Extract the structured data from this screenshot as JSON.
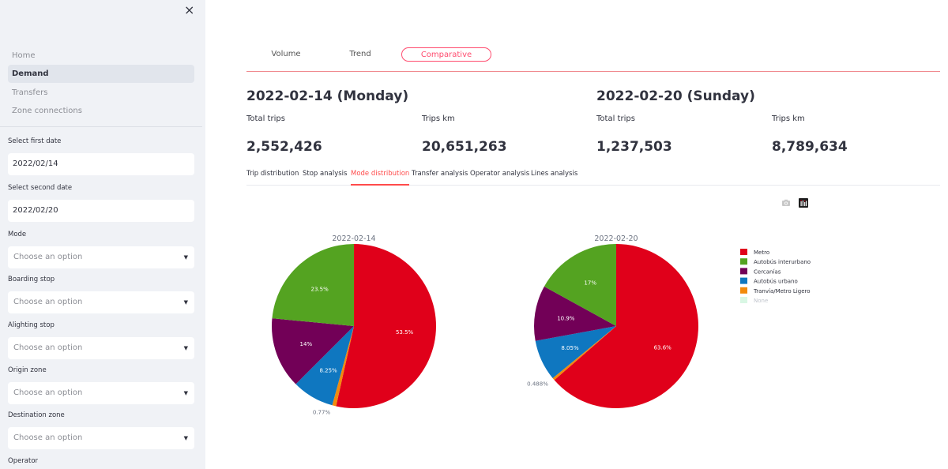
{
  "sidebar": {
    "close_label": "×",
    "nav": [
      {
        "label": "Home",
        "active": false
      },
      {
        "label": "Demand",
        "active": true
      },
      {
        "label": "Transfers",
        "active": false
      },
      {
        "label": "Zone connections",
        "active": false
      }
    ],
    "fields": [
      {
        "label": "Select first date",
        "value": "2022/02/14",
        "type": "date"
      },
      {
        "label": "Select second date",
        "value": "2022/02/20",
        "type": "date"
      },
      {
        "label": "Mode",
        "placeholder": "Choose an option",
        "type": "select"
      },
      {
        "label": "Boarding stop",
        "placeholder": "Choose an option",
        "type": "select"
      },
      {
        "label": "Alighting stop",
        "placeholder": "Choose an option",
        "type": "select"
      },
      {
        "label": "Origin zone",
        "placeholder": "Choose an option",
        "type": "select"
      },
      {
        "label": "Destination zone",
        "placeholder": "Choose an option",
        "type": "select"
      },
      {
        "label": "Operator",
        "type": "select"
      }
    ]
  },
  "main": {
    "top_tabs": [
      {
        "label": "Volume",
        "active": false
      },
      {
        "label": "Trend",
        "active": false
      },
      {
        "label": "Comparative",
        "active": true
      }
    ],
    "dates": [
      {
        "title": "2022-02-14 (Monday)",
        "metrics": [
          {
            "label": "Total trips",
            "value": "2,552,426"
          },
          {
            "label": "Trips km",
            "value": "20,651,263"
          }
        ]
      },
      {
        "title": "2022-02-20 (Sunday)",
        "metrics": [
          {
            "label": "Total trips",
            "value": "1,237,503"
          },
          {
            "label": "Trips km",
            "value": "8,789,634"
          }
        ]
      }
    ],
    "sub_tabs": [
      {
        "label": "Trip distribution",
        "active": false
      },
      {
        "label": "Stop analysis",
        "active": false
      },
      {
        "label": "Mode distribution",
        "active": true
      },
      {
        "label": "Transfer analysis",
        "active": false
      },
      {
        "label": "Operator analysis",
        "active": false
      },
      {
        "label": "Lines analysis",
        "active": false
      }
    ],
    "toolbar": {
      "camera_icon": "camera-icon",
      "plotly_icon": "plotly-logo-icon"
    }
  },
  "chart_data": [
    {
      "type": "pie",
      "title": "2022-02-14",
      "categories": [
        "Metro",
        "Tranvía/Metro Ligero",
        "Autobús urbano",
        "Cercanías",
        "Autobús interurbano"
      ],
      "values": [
        53.5,
        0.77,
        8.25,
        14,
        23.5
      ],
      "labels": [
        "53.5%",
        "0.77%",
        "8.25%",
        "14%",
        "23.5%"
      ],
      "colors": [
        "#e0001a",
        "#f28a0c",
        "#0f77c0",
        "#720057",
        "#54a321"
      ]
    },
    {
      "type": "pie",
      "title": "2022-02-20",
      "categories": [
        "Metro",
        "Tranvía/Metro Ligero",
        "Autobús urbano",
        "Cercanías",
        "Autobús interurbano"
      ],
      "values": [
        63.6,
        0.488,
        8.05,
        10.9,
        17
      ],
      "labels": [
        "63.6%",
        "0.488%",
        "8.05%",
        "10.9%",
        "17%"
      ],
      "colors": [
        "#e0001a",
        "#f28a0c",
        "#0f77c0",
        "#720057",
        "#54a321"
      ]
    }
  ],
  "legend": {
    "placement": "right",
    "items": [
      {
        "label": "Metro",
        "color": "#e0001a",
        "faded": false
      },
      {
        "label": "Autobús interurbano",
        "color": "#54a321",
        "faded": false
      },
      {
        "label": "Cercanías",
        "color": "#720057",
        "faded": false
      },
      {
        "label": "Autobús urbano",
        "color": "#0f77c0",
        "faded": false
      },
      {
        "label": "Tranvía/Metro Ligero",
        "color": "#f28a0c",
        "faded": false
      },
      {
        "label": "None",
        "color": "#d9f7e4",
        "faded": true
      }
    ]
  }
}
